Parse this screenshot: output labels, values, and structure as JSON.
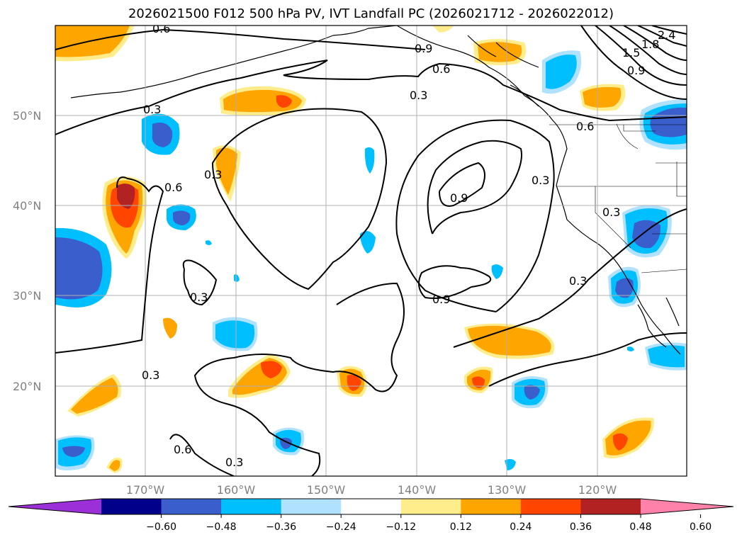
{
  "title": "2026021500 F012 500 hPa PV, IVT Landfall PC (2026021712 - 2026022012)",
  "lat_labels": [
    "50°N",
    "40°N",
    "30°N",
    "20°N"
  ],
  "lon_labels": [
    "170°W",
    "160°W",
    "150°W",
    "140°W",
    "130°W",
    "120°W"
  ],
  "contour_labels": [
    "0.6",
    "0.9",
    "0.6",
    "0.3",
    "0.3",
    "0.3",
    "0.6",
    "0.9",
    "0.3",
    "0.3",
    "0.3",
    "0.9",
    "0.3",
    "0.3",
    "0.6",
    "0.3",
    "1.5",
    "1.8",
    "2.4",
    "0.9",
    "0.6"
  ],
  "colorbar": {
    "ticks": [
      "−0.60",
      "−0.48",
      "−0.36",
      "−0.24",
      "−0.12",
      "0.12",
      "0.24",
      "0.36",
      "0.48",
      "0.60"
    ],
    "colors": [
      "#9b30d9",
      "#00008b",
      "#3a5fcd",
      "#00bfff",
      "#b0e2ff",
      "#ffffff",
      "#ffec8b",
      "#ffa500",
      "#ff4500",
      "#b22222",
      "#ff82ab"
    ]
  }
}
